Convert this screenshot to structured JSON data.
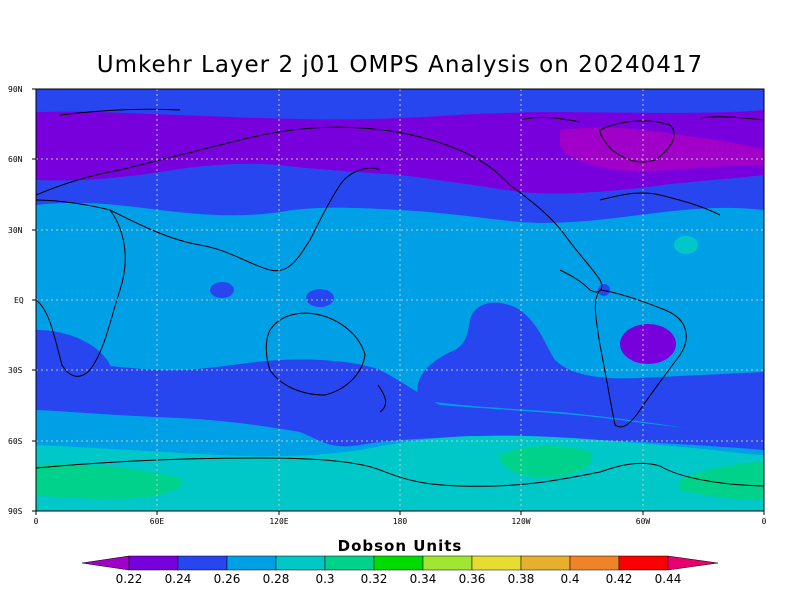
{
  "title": "Umkehr Layer 2 j01 OMPS Analysis on 20240417",
  "colorbar": {
    "title": "Dobson Units",
    "labels": [
      "0.22",
      "0.24",
      "0.26",
      "0.28",
      "0.3",
      "0.32",
      "0.34",
      "0.36",
      "0.38",
      "0.4",
      "0.42",
      "0.44"
    ],
    "colors": [
      "#a000c8",
      "#7800dc",
      "#2846f0",
      "#00a0e6",
      "#00c8c8",
      "#00d28c",
      "#00dc00",
      "#a0e632",
      "#e6dc32",
      "#e6af2d",
      "#f08228",
      "#fa0000",
      "#e60070"
    ]
  },
  "axes": {
    "x_ticks": [
      "0",
      "60E",
      "120E",
      "180",
      "120W",
      "60W",
      "0"
    ],
    "y_ticks": [
      "90N",
      "60N",
      "30N",
      "EQ",
      "30S",
      "60S",
      "90S"
    ]
  },
  "chart_data": {
    "type": "heatmap",
    "title": "Umkehr Layer 2 j01 OMPS Analysis on 20240417",
    "units": "Dobson Units",
    "xlim": [
      0,
      360
    ],
    "ylim": [
      -90,
      90
    ],
    "levels": [
      0.22,
      0.24,
      0.26,
      0.28,
      0.3,
      0.32,
      0.34,
      0.36,
      0.38,
      0.4,
      0.42,
      0.44
    ],
    "zonal_structure": [
      {
        "lat": [
          65,
          90
        ],
        "value": 0.25,
        "label": "0.24-0.26"
      },
      {
        "lat": [
          50,
          75
        ],
        "value": 0.23,
        "label": "0.22-0.24"
      },
      {
        "lat": [
          38,
          55
        ],
        "value": 0.25,
        "label": "0.24-0.26"
      },
      {
        "lat": [
          -25,
          38
        ],
        "value": 0.27,
        "label": "0.26-0.28"
      },
      {
        "lat": [
          -50,
          -25
        ],
        "value": 0.25,
        "label": "0.24-0.26"
      },
      {
        "lat": [
          -65,
          -50
        ],
        "value": 0.27,
        "label": "0.26-0.28"
      },
      {
        "lat": [
          -90,
          -65
        ],
        "value": 0.29,
        "label": "0.28-0.30"
      }
    ]
  }
}
